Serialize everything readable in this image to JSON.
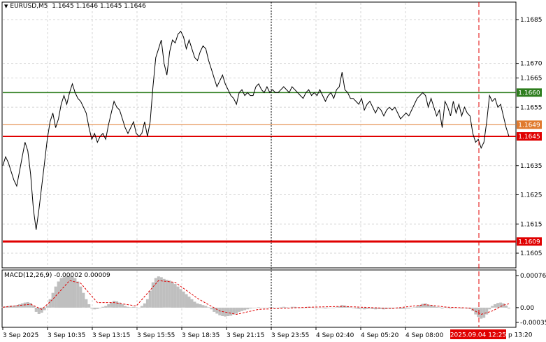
{
  "header": {
    "symbol": "EURUSD,M5",
    "ohlc": "1.1645 1.1646 1.1645 1.1646"
  },
  "price_axis": {
    "ticks": [
      "1.1685",
      "1.1670",
      "1.1665",
      "1.1655",
      "1.1635",
      "1.1625",
      "1.1615",
      "1.1605"
    ],
    "tick_values": [
      1.1685,
      1.167,
      1.1665,
      1.1655,
      1.1635,
      1.1625,
      1.1615,
      1.1605
    ]
  },
  "levels": [
    {
      "label": "1.1660",
      "value": 1.166,
      "color": "#2e7d1e",
      "width": 1.5
    },
    {
      "label": "1.1649",
      "value": 1.1649,
      "color": "#e07a2e",
      "width": 1
    },
    {
      "label": "1.1645",
      "value": 1.1645,
      "color": "#e00000",
      "width": 2
    },
    {
      "label": "1.1609",
      "value": 1.1609,
      "color": "#e00000",
      "width": 3
    }
  ],
  "macd": {
    "title": "MACD(12,26,9) -0.00002 0.00009",
    "ticks": [
      "0.00076",
      "0.00",
      "-0.00035"
    ],
    "tick_values": [
      0.00076,
      0.0,
      -0.00035
    ]
  },
  "time_axis": {
    "labels": [
      "3 Sep 2025",
      "3 Sep 10:35",
      "3 Sep 13:15",
      "3 Sep 15:55",
      "3 Sep 18:35",
      "3 Sep 21:15",
      "3 Sep 23:55",
      "4 Sep 02:40",
      "4 Sep 05:20",
      "4 Sep 08:00"
    ],
    "cursor_label": "2025.09.04 12:25",
    "trailing": "p 13:20"
  },
  "colors": {
    "price_line": "#000000",
    "histogram": "#bfbfbf",
    "signal": "#e00000",
    "grid": "#c8c8c8",
    "cursor": "#e00000"
  },
  "chart_data": {
    "type": "line",
    "price_series": [
      [
        0,
        1.1635
      ],
      [
        1,
        1.1638
      ],
      [
        2,
        1.1636
      ],
      [
        3,
        1.1633
      ],
      [
        4,
        1.163
      ],
      [
        5,
        1.1628
      ],
      [
        6,
        1.1633
      ],
      [
        7,
        1.1638
      ],
      [
        8,
        1.1643
      ],
      [
        9,
        1.164
      ],
      [
        10,
        1.1632
      ],
      [
        11,
        1.162
      ],
      [
        12,
        1.1613
      ],
      [
        13,
        1.162
      ],
      [
        14,
        1.1628
      ],
      [
        15,
        1.1636
      ],
      [
        16,
        1.1644
      ],
      [
        17,
        1.165
      ],
      [
        18,
        1.1653
      ],
      [
        19,
        1.1648
      ],
      [
        20,
        1.1651
      ],
      [
        21,
        1.1656
      ],
      [
        22,
        1.1659
      ],
      [
        23,
        1.1656
      ],
      [
        24,
        1.166
      ],
      [
        25,
        1.1663
      ],
      [
        26,
        1.166
      ],
      [
        27,
        1.1658
      ],
      [
        28,
        1.1657
      ],
      [
        29,
        1.1655
      ],
      [
        30,
        1.1653
      ],
      [
        31,
        1.1648
      ],
      [
        32,
        1.1644
      ],
      [
        33,
        1.1646
      ],
      [
        34,
        1.1643
      ],
      [
        35,
        1.1645
      ],
      [
        36,
        1.1646
      ],
      [
        37,
        1.1644
      ],
      [
        38,
        1.1649
      ],
      [
        39,
        1.1653
      ],
      [
        40,
        1.1657
      ],
      [
        41,
        1.1655
      ],
      [
        42,
        1.1654
      ],
      [
        43,
        1.1651
      ],
      [
        44,
        1.1648
      ],
      [
        45,
        1.1646
      ],
      [
        46,
        1.1648
      ],
      [
        47,
        1.165
      ],
      [
        48,
        1.1646
      ],
      [
        49,
        1.1645
      ],
      [
        50,
        1.1646
      ],
      [
        51,
        1.165
      ],
      [
        52,
        1.1645
      ],
      [
        53,
        1.165
      ],
      [
        54,
        1.1662
      ],
      [
        55,
        1.1672
      ],
      [
        56,
        1.1675
      ],
      [
        57,
        1.1678
      ],
      [
        58,
        1.167
      ],
      [
        59,
        1.1666
      ],
      [
        60,
        1.1674
      ],
      [
        61,
        1.1678
      ],
      [
        62,
        1.1677
      ],
      [
        63,
        1.168
      ],
      [
        64,
        1.1681
      ],
      [
        65,
        1.1679
      ],
      [
        66,
        1.1675
      ],
      [
        67,
        1.1678
      ],
      [
        68,
        1.1675
      ],
      [
        69,
        1.1672
      ],
      [
        70,
        1.1671
      ],
      [
        71,
        1.1674
      ],
      [
        72,
        1.1676
      ],
      [
        73,
        1.1675
      ],
      [
        74,
        1.1671
      ],
      [
        75,
        1.1668
      ],
      [
        76,
        1.1665
      ],
      [
        77,
        1.1662
      ],
      [
        78,
        1.1664
      ],
      [
        79,
        1.1666
      ],
      [
        80,
        1.1663
      ],
      [
        81,
        1.1661
      ],
      [
        82,
        1.1659
      ],
      [
        83,
        1.1658
      ],
      [
        84,
        1.1656
      ],
      [
        85,
        1.166
      ],
      [
        86,
        1.1661
      ],
      [
        87,
        1.1659
      ],
      [
        88,
        1.166
      ],
      [
        89,
        1.1659
      ],
      [
        90,
        1.1659
      ],
      [
        91,
        1.1662
      ],
      [
        92,
        1.1663
      ],
      [
        93,
        1.1661
      ],
      [
        94,
        1.166
      ],
      [
        95,
        1.1662
      ],
      [
        96,
        1.166
      ],
      [
        97,
        1.1661
      ],
      [
        98,
        1.166
      ],
      [
        99,
        1.166
      ],
      [
        100,
        1.1661
      ],
      [
        101,
        1.1662
      ],
      [
        102,
        1.1661
      ],
      [
        103,
        1.166
      ],
      [
        104,
        1.1662
      ],
      [
        105,
        1.1661
      ],
      [
        106,
        1.166
      ],
      [
        107,
        1.1659
      ],
      [
        108,
        1.1658
      ],
      [
        109,
        1.166
      ],
      [
        110,
        1.1661
      ],
      [
        111,
        1.1659
      ],
      [
        112,
        1.166
      ],
      [
        113,
        1.1659
      ],
      [
        114,
        1.1661
      ],
      [
        115,
        1.1659
      ],
      [
        116,
        1.1657
      ],
      [
        117,
        1.1659
      ],
      [
        118,
        1.166
      ],
      [
        119,
        1.1658
      ],
      [
        120,
        1.1661
      ],
      [
        121,
        1.1662
      ],
      [
        122,
        1.1667
      ],
      [
        123,
        1.1661
      ],
      [
        124,
        1.166
      ],
      [
        125,
        1.1658
      ],
      [
        126,
        1.1658
      ],
      [
        127,
        1.1657
      ],
      [
        128,
        1.1656
      ],
      [
        129,
        1.1658
      ],
      [
        130,
        1.1654
      ],
      [
        131,
        1.1656
      ],
      [
        132,
        1.1657
      ],
      [
        133,
        1.1655
      ],
      [
        134,
        1.1653
      ],
      [
        135,
        1.1655
      ],
      [
        136,
        1.1654
      ],
      [
        137,
        1.1652
      ],
      [
        138,
        1.1654
      ],
      [
        139,
        1.1655
      ],
      [
        140,
        1.1654
      ],
      [
        141,
        1.1655
      ],
      [
        142,
        1.1653
      ],
      [
        143,
        1.1651
      ],
      [
        144,
        1.1652
      ],
      [
        145,
        1.1653
      ],
      [
        146,
        1.1652
      ],
      [
        147,
        1.1654
      ],
      [
        148,
        1.1656
      ],
      [
        149,
        1.1658
      ],
      [
        150,
        1.1659
      ],
      [
        151,
        1.166
      ],
      [
        152,
        1.1659
      ],
      [
        153,
        1.1655
      ],
      [
        154,
        1.1658
      ],
      [
        155,
        1.1655
      ],
      [
        156,
        1.1652
      ],
      [
        157,
        1.1654
      ],
      [
        158,
        1.1648
      ],
      [
        159,
        1.1657
      ],
      [
        160,
        1.1655
      ],
      [
        161,
        1.1652
      ],
      [
        162,
        1.1657
      ],
      [
        163,
        1.1653
      ],
      [
        164,
        1.1656
      ],
      [
        165,
        1.1652
      ],
      [
        166,
        1.1655
      ],
      [
        167,
        1.1653
      ],
      [
        168,
        1.1652
      ],
      [
        169,
        1.1646
      ],
      [
        170,
        1.1643
      ],
      [
        171,
        1.1644
      ],
      [
        172,
        1.1641
      ],
      [
        173,
        1.1643
      ],
      [
        174,
        1.165
      ],
      [
        175,
        1.1659
      ],
      [
        176,
        1.1657
      ],
      [
        177,
        1.1658
      ],
      [
        178,
        1.1655
      ],
      [
        179,
        1.1656
      ],
      [
        180,
        1.1652
      ],
      [
        181,
        1.1648
      ],
      [
        182,
        1.1645
      ]
    ],
    "macd_histogram": [
      [
        0,
        2e-05
      ],
      [
        1,
        3e-05
      ],
      [
        2,
        4e-05
      ],
      [
        3,
        5e-05
      ],
      [
        4,
        4e-05
      ],
      [
        5,
        6e-05
      ],
      [
        6,
        8e-05
      ],
      [
        7,
        0.0001
      ],
      [
        8,
        0.00012
      ],
      [
        9,
        0.00013
      ],
      [
        10,
        0.00011
      ],
      [
        11,
        5e-05
      ],
      [
        12,
        -0.0001
      ],
      [
        13,
        -0.00015
      ],
      [
        14,
        -0.00012
      ],
      [
        15,
        -6e-05
      ],
      [
        16,
        5e-05
      ],
      [
        17,
        0.0002
      ],
      [
        18,
        0.00035
      ],
      [
        19,
        0.0005
      ],
      [
        20,
        0.00062
      ],
      [
        21,
        0.0007
      ],
      [
        22,
        0.00072
      ],
      [
        23,
        0.00074
      ],
      [
        24,
        0.00075
      ],
      [
        25,
        0.00073
      ],
      [
        26,
        0.0007
      ],
      [
        27,
        0.00062
      ],
      [
        28,
        0.0005
      ],
      [
        29,
        0.00035
      ],
      [
        30,
        0.0002
      ],
      [
        31,
        8e-05
      ],
      [
        32,
        -2e-05
      ],
      [
        33,
        -4e-05
      ],
      [
        34,
        -3e-05
      ],
      [
        35,
        -1e-05
      ],
      [
        36,
        2e-05
      ],
      [
        37,
        4e-05
      ],
      [
        38,
        8e-05
      ],
      [
        39,
        0.00012
      ],
      [
        40,
        0.00016
      ],
      [
        41,
        0.00015
      ],
      [
        42,
        0.00012
      ],
      [
        43,
        8e-05
      ],
      [
        44,
        4e-05
      ],
      [
        45,
        2e-05
      ],
      [
        46,
        1e-05
      ],
      [
        47,
        2e-05
      ],
      [
        48,
        1e-05
      ],
      [
        49,
        0.0
      ],
      [
        50,
        4e-05
      ],
      [
        51,
        0.0001
      ],
      [
        52,
        0.0002
      ],
      [
        53,
        0.0004
      ],
      [
        54,
        0.0006
      ],
      [
        55,
        0.0007
      ],
      [
        56,
        0.00074
      ],
      [
        57,
        0.00072
      ],
      [
        58,
        0.00068
      ],
      [
        59,
        0.00066
      ],
      [
        60,
        0.00064
      ],
      [
        61,
        0.0006
      ],
      [
        62,
        0.00056
      ],
      [
        63,
        0.0005
      ],
      [
        64,
        0.00044
      ],
      [
        65,
        0.00038
      ],
      [
        66,
        0.00032
      ],
      [
        67,
        0.00026
      ],
      [
        68,
        0.0002
      ],
      [
        69,
        0.00014
      ],
      [
        70,
        0.0001
      ],
      [
        71,
        8e-05
      ],
      [
        72,
        6e-05
      ],
      [
        73,
        4e-05
      ],
      [
        74,
        1e-05
      ],
      [
        75,
        -4e-05
      ],
      [
        76,
        -0.0001
      ],
      [
        77,
        -0.00014
      ],
      [
        78,
        -0.00018
      ],
      [
        79,
        -0.0002
      ],
      [
        80,
        -0.00021
      ],
      [
        81,
        -0.0002
      ],
      [
        82,
        -0.00019
      ],
      [
        83,
        -0.00016
      ],
      [
        84,
        -0.00014
      ],
      [
        85,
        -0.0001
      ],
      [
        86,
        -8e-05
      ],
      [
        87,
        -6e-05
      ],
      [
        88,
        -4e-05
      ],
      [
        89,
        -2e-05
      ],
      [
        90,
        -1e-05
      ],
      [
        91,
        0.0
      ],
      [
        92,
        1e-05
      ],
      [
        93,
        0.0
      ],
      [
        94,
        -1e-05
      ],
      [
        95,
        0.0
      ],
      [
        96,
        1e-05
      ],
      [
        97,
        1e-05
      ],
      [
        98,
        0.0
      ],
      [
        99,
        0.0
      ],
      [
        100,
        1e-05
      ],
      [
        101,
        2e-05
      ],
      [
        102,
        1e-05
      ],
      [
        103,
        0.0
      ],
      [
        104,
        2e-05
      ],
      [
        105,
        2e-05
      ],
      [
        106,
        1e-05
      ],
      [
        107,
        0.0
      ],
      [
        108,
        -1e-05
      ],
      [
        109,
        0.0
      ],
      [
        110,
        2e-05
      ],
      [
        111,
        1e-05
      ],
      [
        112,
        0.0
      ],
      [
        113,
        -1e-05
      ],
      [
        114,
        0.0
      ],
      [
        115,
        -1e-05
      ],
      [
        116,
        -2e-05
      ],
      [
        117,
        -1e-05
      ],
      [
        118,
        0.0
      ],
      [
        119,
        -1e-05
      ],
      [
        120,
        1e-05
      ],
      [
        121,
        3e-05
      ],
      [
        122,
        6e-05
      ],
      [
        123,
        5e-05
      ],
      [
        124,
        3e-05
      ],
      [
        125,
        1e-05
      ],
      [
        126,
        -1e-05
      ],
      [
        127,
        -2e-05
      ],
      [
        128,
        -3e-05
      ],
      [
        129,
        -2e-05
      ],
      [
        130,
        -4e-05
      ],
      [
        131,
        -3e-05
      ],
      [
        132,
        -2e-05
      ],
      [
        133,
        -3e-05
      ],
      [
        134,
        -4e-05
      ],
      [
        135,
        -3e-05
      ],
      [
        136,
        -3e-05
      ],
      [
        137,
        -4e-05
      ],
      [
        138,
        -3e-05
      ],
      [
        139,
        -2e-05
      ],
      [
        140,
        -2e-05
      ],
      [
        141,
        -1e-05
      ],
      [
        142,
        -2e-05
      ],
      [
        143,
        -3e-05
      ],
      [
        144,
        -3e-05
      ],
      [
        145,
        -2e-05
      ],
      [
        146,
        -2e-05
      ],
      [
        147,
        -1e-05
      ],
      [
        148,
        1e-05
      ],
      [
        149,
        3e-05
      ],
      [
        150,
        6e-05
      ],
      [
        151,
        9e-05
      ],
      [
        152,
        0.0001
      ],
      [
        153,
        7e-05
      ],
      [
        154,
        6e-05
      ],
      [
        155,
        4e-05
      ],
      [
        156,
        2e-05
      ],
      [
        157,
        1e-05
      ],
      [
        158,
        -2e-05
      ],
      [
        159,
        1e-05
      ],
      [
        160,
        0.0
      ],
      [
        161,
        -2e-05
      ],
      [
        162,
        0.0
      ],
      [
        163,
        -1e-05
      ],
      [
        164,
        0.0
      ],
      [
        165,
        -2e-05
      ],
      [
        166,
        -1e-05
      ],
      [
        167,
        -2e-05
      ],
      [
        168,
        -3e-05
      ],
      [
        169,
        -8e-05
      ],
      [
        170,
        -0.00016
      ],
      [
        171,
        -0.00022
      ],
      [
        172,
        -0.00026
      ],
      [
        173,
        -0.00024
      ],
      [
        174,
        -0.00016
      ],
      [
        175,
        -4e-05
      ],
      [
        176,
        4e-05
      ],
      [
        177,
        8e-05
      ],
      [
        178,
        0.00011
      ],
      [
        179,
        0.00012
      ],
      [
        180,
        0.0001
      ],
      [
        181,
        5e-05
      ],
      [
        182,
        -2e-05
      ]
    ],
    "macd_signal": [
      [
        0,
        1e-05
      ],
      [
        10,
        8e-05
      ],
      [
        14,
        -4e-05
      ],
      [
        18,
        0.0002
      ],
      [
        24,
        0.00064
      ],
      [
        28,
        0.00058
      ],
      [
        34,
        0.00012
      ],
      [
        40,
        0.00012
      ],
      [
        48,
        4e-05
      ],
      [
        56,
        0.00064
      ],
      [
        62,
        0.0006
      ],
      [
        70,
        0.00022
      ],
      [
        78,
        -8e-05
      ],
      [
        84,
        -0.00016
      ],
      [
        92,
        -4e-05
      ],
      [
        110,
        1e-05
      ],
      [
        122,
        3e-05
      ],
      [
        140,
        -2e-05
      ],
      [
        152,
        7e-05
      ],
      [
        160,
        1e-05
      ],
      [
        168,
        -1e-05
      ],
      [
        172,
        -0.00016
      ],
      [
        176,
        -8e-05
      ],
      [
        180,
        6e-05
      ],
      [
        182,
        9e-05
      ]
    ]
  }
}
